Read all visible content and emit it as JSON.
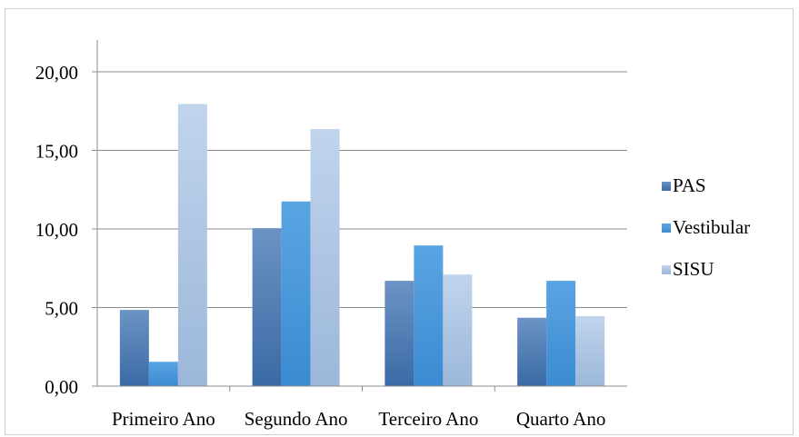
{
  "chart_data": {
    "type": "bar",
    "categories": [
      "Primeiro Ano",
      "Segundo Ano",
      "Terceiro Ano",
      "Quarto Ano"
    ],
    "series": [
      {
        "name": "PAS",
        "values": [
          4.85,
          10.05,
          6.7,
          4.35
        ],
        "color": "#4f81bd"
      },
      {
        "name": "Vestibular",
        "values": [
          1.55,
          11.75,
          8.95,
          6.7
        ],
        "color": "#4a9ad8"
      },
      {
        "name": "SISU",
        "values": [
          17.95,
          16.35,
          7.1,
          4.45
        ],
        "color": "#b4cbe6"
      }
    ],
    "y_ticks": [
      "0,00",
      "5,00",
      "10,00",
      "15,00",
      "20,00"
    ],
    "ylim": [
      0,
      20
    ],
    "grid": true,
    "legend_position": "right"
  }
}
